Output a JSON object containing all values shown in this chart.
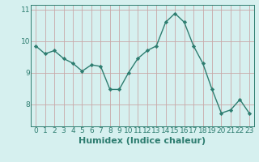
{
  "x": [
    0,
    1,
    2,
    3,
    4,
    5,
    6,
    7,
    8,
    9,
    10,
    11,
    12,
    13,
    14,
    15,
    16,
    17,
    18,
    19,
    20,
    21,
    22,
    23
  ],
  "y": [
    9.85,
    9.6,
    9.7,
    9.45,
    9.3,
    9.05,
    9.25,
    9.2,
    8.47,
    8.47,
    9.0,
    9.45,
    9.7,
    9.85,
    10.6,
    10.88,
    10.6,
    9.85,
    9.3,
    8.47,
    7.72,
    7.82,
    8.15,
    7.72
  ],
  "line_color": "#2e7d70",
  "marker": "D",
  "marker_size": 2.2,
  "bg_color": "#d6f0ef",
  "grid_color_h": "#c8a8a8",
  "grid_color_v": "#c8a8a8",
  "axis_color": "#2e7d70",
  "xlabel": "Humidex (Indice chaleur)",
  "xlabel_fontsize": 8,
  "tick_fontsize": 6.5,
  "ylim": [
    7.3,
    11.15
  ],
  "yticks": [
    8,
    9,
    10,
    11
  ],
  "xticks": [
    0,
    1,
    2,
    3,
    4,
    5,
    6,
    7,
    8,
    9,
    10,
    11,
    12,
    13,
    14,
    15,
    16,
    17,
    18,
    19,
    20,
    21,
    22,
    23
  ],
  "line_width": 1.0
}
